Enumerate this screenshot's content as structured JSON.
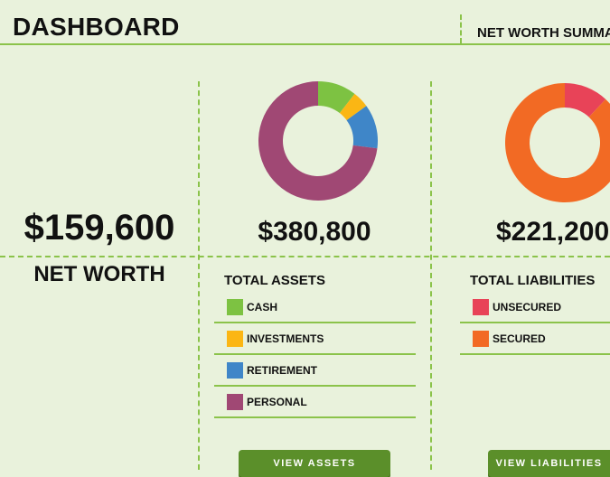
{
  "header": {
    "title": "DASHBOARD",
    "summary_label": "NET WORTH SUMMAR"
  },
  "net_worth": {
    "amount": "$159,600",
    "label": "NET WORTH"
  },
  "assets": {
    "amount": "$380,800",
    "title": "TOTAL ASSETS",
    "items": [
      {
        "label": "CASH",
        "color": "#7dc242"
      },
      {
        "label": "INVESTMENTS",
        "color": "#fbb614"
      },
      {
        "label": "RETIREMENT",
        "color": "#3f86c8"
      },
      {
        "label": "PERSONAL",
        "color": "#a04874"
      }
    ],
    "button_label": "VIEW ASSETS"
  },
  "liabilities": {
    "amount": "$221,200",
    "title": "TOTAL LIABILITIES",
    "items": [
      {
        "label": "UNSECURED",
        "color": "#e84358"
      },
      {
        "label": "SECURED",
        "color": "#f26a24"
      }
    ],
    "button_label": "VIEW LIABILITIES"
  },
  "chart_data": [
    {
      "type": "pie",
      "variant": "donut",
      "categories": [
        "CASH",
        "INVESTMENTS",
        "RETIREMENT",
        "PERSONAL"
      ],
      "values": [
        10.5,
        4.5,
        12,
        73
      ],
      "colors": [
        "#7dc242",
        "#fbb614",
        "#3f86c8",
        "#a04874"
      ]
    },
    {
      "type": "pie",
      "variant": "donut",
      "categories": [
        "UNSECURED",
        "SECURED"
      ],
      "values": [
        12,
        88
      ],
      "colors": [
        "#e84358",
        "#f26a24"
      ]
    }
  ]
}
